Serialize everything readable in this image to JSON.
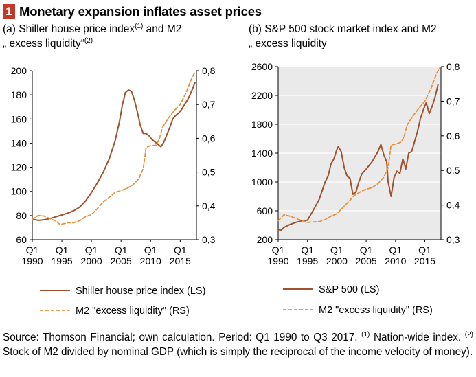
{
  "header": {
    "figure_number": "1",
    "title": "Monetary expansion inflates asset prices"
  },
  "panels": [
    {
      "subtitle_main": "(a) Shiller house price index",
      "subtitle_sup1": "(1)",
      "subtitle_mid": " and M2",
      "subtitle_line2": "„ excess liquidity“",
      "subtitle_sup2": "(2)"
    },
    {
      "subtitle_main": "(b) S&P 500 stock market index and M2",
      "subtitle_line2": "„ excess liquidity"
    }
  ],
  "footer": {
    "source_a": "Source: Thomson Financial; own calculation. Period: Q1 1990 to Q3 2017. ",
    "sup1": "(1)",
    "source_b": " Nation-wide index. ",
    "sup2": "(2)",
    "source_c": " Stock of M2 divided by nominal GDP (which is simply the reciprocal of the income velocity of money)."
  },
  "chart_data": [
    {
      "type": "line",
      "x_tick_labels": [
        {
          "q": "Q1",
          "year": "1990"
        },
        {
          "q": "Q1",
          "year": "1995"
        },
        {
          "q": "Q1",
          "year": "2000"
        },
        {
          "q": "Q1",
          "year": "2005"
        },
        {
          "q": "Q1",
          "year": "2010"
        },
        {
          "q": "Q1",
          "year": "2015"
        }
      ],
      "x_tick_years": [
        1990,
        1995,
        2000,
        2005,
        2010,
        2015
      ],
      "xlim": [
        1990,
        2017.75
      ],
      "ylim_left": [
        60,
        200
      ],
      "yticks_left": [
        "60",
        "80",
        "100",
        "120",
        "140",
        "160",
        "180",
        "200"
      ],
      "ylim_right": [
        0.3,
        0.8
      ],
      "yticks_right": [
        "0,3",
        "0,4",
        "0,5",
        "0,6",
        "0,7",
        "0,8"
      ],
      "grid": false,
      "legend_position": "bottom",
      "series": [
        {
          "name": "Shiller house price index (LS)",
          "axis": "left",
          "style": "solid",
          "color": "#a0522d",
          "points": [
            [
              1990.0,
              77
            ],
            [
              1991.0,
              76
            ],
            [
              1992.0,
              76.5
            ],
            [
              1993.0,
              77.5
            ],
            [
              1994.0,
              79
            ],
            [
              1995.0,
              80.5
            ],
            [
              1996.0,
              82
            ],
            [
              1997.0,
              84
            ],
            [
              1998.0,
              87
            ],
            [
              1999.0,
              92
            ],
            [
              2000.0,
              99
            ],
            [
              2001.0,
              107
            ],
            [
              2002.0,
              116
            ],
            [
              2003.0,
              127
            ],
            [
              2004.0,
              142
            ],
            [
              2004.75,
              158
            ],
            [
              2005.25,
              172
            ],
            [
              2005.75,
              182
            ],
            [
              2006.25,
              184
            ],
            [
              2006.75,
              183
            ],
            [
              2007.25,
              176
            ],
            [
              2007.75,
              166
            ],
            [
              2008.25,
              155
            ],
            [
              2008.75,
              148
            ],
            [
              2009.25,
              148
            ],
            [
              2009.75,
              146
            ],
            [
              2010.25,
              143
            ],
            [
              2010.75,
              141
            ],
            [
              2011.25,
              139
            ],
            [
              2011.75,
              137
            ],
            [
              2012.25,
              141
            ],
            [
              2012.75,
              147
            ],
            [
              2013.25,
              153
            ],
            [
              2013.75,
              160
            ],
            [
              2014.25,
              163
            ],
            [
              2014.75,
              165
            ],
            [
              2015.25,
              168
            ],
            [
              2015.75,
              172
            ],
            [
              2016.25,
              176
            ],
            [
              2016.75,
              181
            ],
            [
              2017.25,
              187
            ],
            [
              2017.5,
              190
            ]
          ]
        },
        {
          "name": "M2 \"excess liquidity\" (RS)",
          "axis": "right",
          "style": "dashed",
          "color": "#e8913c",
          "points": [
            [
              1990.0,
              0.36
            ],
            [
              1991.0,
              0.372
            ],
            [
              1992.0,
              0.37
            ],
            [
              1993.0,
              0.362
            ],
            [
              1994.0,
              0.355
            ],
            [
              1994.5,
              0.347
            ],
            [
              1995.0,
              0.346
            ],
            [
              1996.0,
              0.35
            ],
            [
              1997.0,
              0.35
            ],
            [
              1998.0,
              0.356
            ],
            [
              1999.0,
              0.368
            ],
            [
              2000.0,
              0.374
            ],
            [
              2001.0,
              0.392
            ],
            [
              2002.0,
              0.412
            ],
            [
              2003.0,
              0.425
            ],
            [
              2004.0,
              0.44
            ],
            [
              2005.0,
              0.445
            ],
            [
              2006.0,
              0.452
            ],
            [
              2007.0,
              0.462
            ],
            [
              2008.0,
              0.48
            ],
            [
              2008.75,
              0.51
            ],
            [
              2009.25,
              0.574
            ],
            [
              2010.0,
              0.578
            ],
            [
              2011.0,
              0.58
            ],
            [
              2011.5,
              0.6
            ],
            [
              2012.0,
              0.632
            ],
            [
              2013.0,
              0.66
            ],
            [
              2014.0,
              0.682
            ],
            [
              2015.0,
              0.7
            ],
            [
              2016.0,
              0.735
            ],
            [
              2017.0,
              0.78
            ],
            [
              2017.5,
              0.795
            ]
          ]
        }
      ]
    },
    {
      "type": "line",
      "x_tick_labels": [
        {
          "q": "Q1",
          "year": "1990"
        },
        {
          "q": "Q1",
          "year": "1995"
        },
        {
          "q": "Q1",
          "year": "2000"
        },
        {
          "q": "Q1",
          "year": "2005"
        },
        {
          "q": "Q1",
          "year": "2010"
        },
        {
          "q": "Q1",
          "year": "2015"
        }
      ],
      "x_tick_years": [
        1990,
        1995,
        2000,
        2005,
        2010,
        2015
      ],
      "xlim": [
        1990,
        2017.75
      ],
      "ylim_left": [
        200,
        2600
      ],
      "yticks_left": [
        "200",
        "600",
        "1000",
        "1400",
        "1800",
        "2200",
        "2600"
      ],
      "ylim_right": [
        0.3,
        0.8
      ],
      "yticks_right": [
        "0,3",
        "0,4",
        "0,5",
        "0,6",
        "0,7",
        "0,8"
      ],
      "grid": true,
      "legend_position": "bottom",
      "series": [
        {
          "name": "S&P 500 (LS)",
          "axis": "left",
          "style": "solid",
          "color": "#a0522d",
          "points": [
            [
              1990.0,
              340
            ],
            [
              1990.5,
              330
            ],
            [
              1991.0,
              370
            ],
            [
              1992.0,
              410
            ],
            [
              1993.0,
              440
            ],
            [
              1994.0,
              460
            ],
            [
              1995.0,
              470
            ],
            [
              1996.0,
              610
            ],
            [
              1997.0,
              760
            ],
            [
              1998.0,
              1000
            ],
            [
              1998.5,
              1080
            ],
            [
              1999.0,
              1250
            ],
            [
              1999.5,
              1320
            ],
            [
              2000.0,
              1450
            ],
            [
              2000.25,
              1490
            ],
            [
              2000.75,
              1420
            ],
            [
              2001.25,
              1200
            ],
            [
              2001.75,
              1080
            ],
            [
              2002.25,
              1050
            ],
            [
              2002.5,
              930
            ],
            [
              2002.75,
              830
            ],
            [
              2003.25,
              860
            ],
            [
              2003.75,
              1000
            ],
            [
              2004.25,
              1110
            ],
            [
              2005.0,
              1180
            ],
            [
              2006.0,
              1280
            ],
            [
              2007.0,
              1420
            ],
            [
              2007.5,
              1520
            ],
            [
              2008.0,
              1380
            ],
            [
              2008.5,
              1280
            ],
            [
              2008.75,
              1000
            ],
            [
              2009.25,
              800
            ],
            [
              2009.75,
              1060
            ],
            [
              2010.25,
              1150
            ],
            [
              2010.75,
              1120
            ],
            [
              2011.25,
              1320
            ],
            [
              2011.75,
              1180
            ],
            [
              2012.25,
              1400
            ],
            [
              2012.75,
              1420
            ],
            [
              2013.25,
              1560
            ],
            [
              2013.75,
              1700
            ],
            [
              2014.25,
              1880
            ],
            [
              2014.75,
              2000
            ],
            [
              2015.25,
              2100
            ],
            [
              2015.75,
              1950
            ],
            [
              2016.25,
              2050
            ],
            [
              2016.75,
              2180
            ],
            [
              2017.25,
              2350
            ]
          ]
        },
        {
          "name": "M2 \"excess liquidity\" (RS)",
          "axis": "right",
          "style": "dashed",
          "color": "#e8913c",
          "points": [
            [
              1990.0,
              0.355
            ],
            [
              1991.0,
              0.372
            ],
            [
              1992.0,
              0.368
            ],
            [
              1993.0,
              0.362
            ],
            [
              1994.0,
              0.355
            ],
            [
              1995.0,
              0.35
            ],
            [
              1996.0,
              0.351
            ],
            [
              1997.0,
              0.352
            ],
            [
              1998.0,
              0.358
            ],
            [
              1999.0,
              0.368
            ],
            [
              2000.0,
              0.375
            ],
            [
              2001.0,
              0.392
            ],
            [
              2002.0,
              0.41
            ],
            [
              2003.0,
              0.428
            ],
            [
              2004.0,
              0.438
            ],
            [
              2005.0,
              0.446
            ],
            [
              2006.0,
              0.45
            ],
            [
              2007.0,
              0.462
            ],
            [
              2008.0,
              0.48
            ],
            [
              2008.75,
              0.508
            ],
            [
              2009.25,
              0.574
            ],
            [
              2010.0,
              0.576
            ],
            [
              2011.0,
              0.582
            ],
            [
              2011.5,
              0.6
            ],
            [
              2012.0,
              0.632
            ],
            [
              2013.0,
              0.658
            ],
            [
              2014.0,
              0.68
            ],
            [
              2015.0,
              0.7
            ],
            [
              2016.0,
              0.735
            ],
            [
              2017.0,
              0.78
            ],
            [
              2017.5,
              0.795
            ]
          ]
        }
      ]
    }
  ]
}
